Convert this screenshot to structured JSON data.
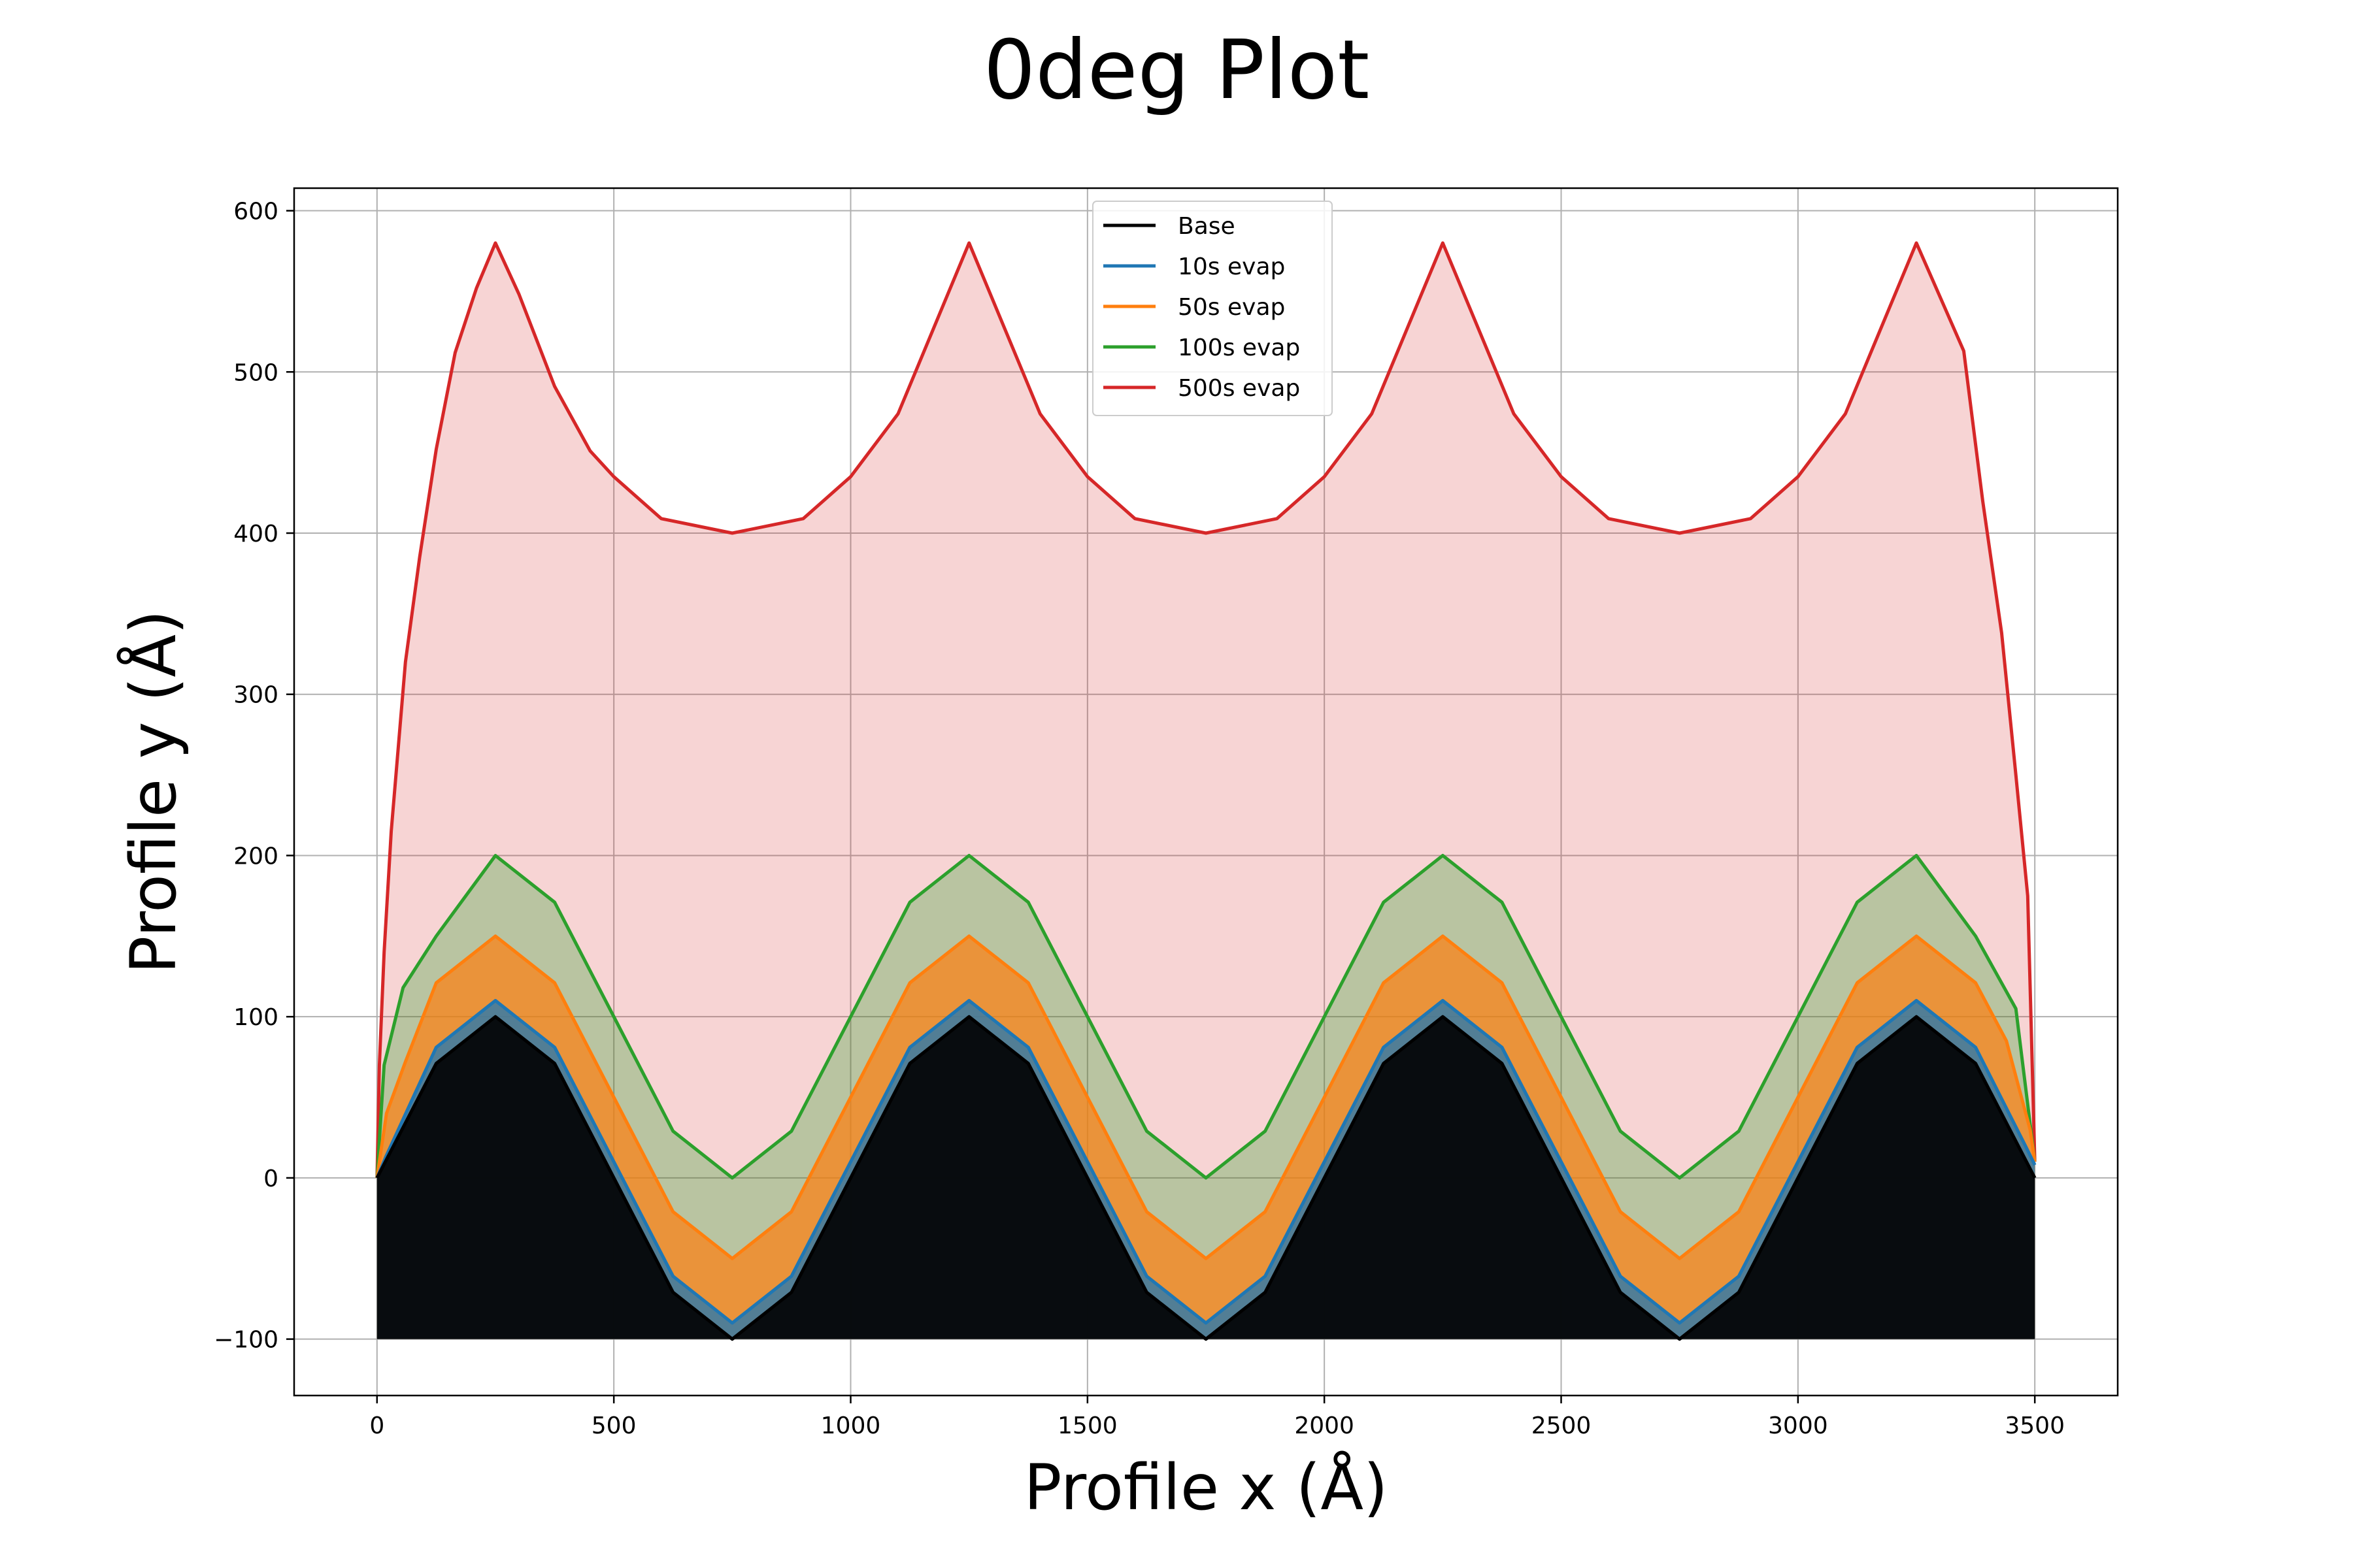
{
  "chart_data": {
    "type": "area",
    "title": "0deg Plot",
    "xlabel": "Profile x (Å)",
    "ylabel": "Profile y (Å)",
    "xlim": [
      -175,
      3675
    ],
    "ylim": [
      -135,
      614
    ],
    "xticks": [
      0,
      500,
      1000,
      1500,
      2000,
      2500,
      3000,
      3500
    ],
    "xtick_labels": [
      "0",
      "500",
      "1000",
      "1500",
      "2000",
      "2500",
      "3000",
      "3500"
    ],
    "yticks": [
      -100,
      0,
      100,
      200,
      300,
      400,
      500,
      600
    ],
    "ytick_labels": [
      "−100",
      "0",
      "100",
      "200",
      "300",
      "400",
      "500",
      "600"
    ],
    "grid": true,
    "legend_position": "upper center",
    "fill_baseline": -100,
    "series": [
      {
        "name": "Base",
        "color": "#000000",
        "fill_alpha": 0.9,
        "x": [
          0,
          125,
          250,
          375,
          500,
          625,
          750,
          875,
          1000,
          1125,
          1250,
          1375,
          1500,
          1625,
          1750,
          1875,
          2000,
          2125,
          2250,
          2375,
          2500,
          2625,
          2750,
          2875,
          3000,
          3125,
          3250,
          3375,
          3500
        ],
        "y": [
          0,
          71,
          100,
          71,
          0,
          -71,
          -100,
          -71,
          0,
          71,
          100,
          71,
          0,
          -71,
          -100,
          -71,
          0,
          71,
          100,
          71,
          0,
          -71,
          -100,
          -71,
          0,
          71,
          100,
          71,
          0
        ]
      },
      {
        "name": "10s evap",
        "color": "#1f77b4",
        "fill_alpha": 0.75,
        "x": [
          0,
          20,
          125,
          250,
          375,
          500,
          625,
          750,
          875,
          1000,
          1125,
          1250,
          1375,
          1500,
          1625,
          1750,
          1875,
          2000,
          2125,
          2250,
          2375,
          2500,
          2625,
          2750,
          2875,
          3000,
          3125,
          3250,
          3375,
          3480,
          3500
        ],
        "y": [
          0,
          14,
          81,
          110,
          81,
          10,
          -61,
          -90,
          -61,
          10,
          81,
          110,
          81,
          10,
          -61,
          -90,
          -61,
          10,
          81,
          110,
          81,
          10,
          -61,
          -90,
          -61,
          10,
          81,
          110,
          81,
          20,
          8
        ]
      },
      {
        "name": "50s evap",
        "color": "#ff7f0e",
        "fill_alpha": 0.7,
        "x": [
          0,
          20,
          60,
          125,
          250,
          375,
          500,
          625,
          750,
          875,
          1000,
          1125,
          1250,
          1375,
          1500,
          1625,
          1750,
          1875,
          2000,
          2125,
          2250,
          2375,
          2500,
          2625,
          2750,
          2875,
          3000,
          3125,
          3250,
          3375,
          3440,
          3490,
          3500
        ],
        "y": [
          0,
          40,
          72,
          121,
          150,
          121,
          50,
          -21,
          -50,
          -21,
          50,
          121,
          150,
          121,
          50,
          -21,
          -50,
          -21,
          50,
          121,
          150,
          121,
          50,
          -21,
          -50,
          -21,
          50,
          121,
          150,
          121,
          85,
          30,
          10
        ]
      },
      {
        "name": "100s evap",
        "color": "#2ca02c",
        "fill_alpha": 0.3,
        "x": [
          0,
          15,
          55,
          125,
          250,
          375,
          500,
          625,
          750,
          875,
          1000,
          1125,
          1250,
          1375,
          1500,
          1625,
          1750,
          1875,
          2000,
          2125,
          2250,
          2375,
          2500,
          2625,
          2750,
          2875,
          3000,
          3125,
          3250,
          3375,
          3460,
          3500
        ],
        "y": [
          0,
          70,
          118,
          150,
          200,
          171,
          100,
          29,
          0,
          29,
          100,
          171,
          200,
          171,
          100,
          29,
          0,
          29,
          100,
          171,
          200,
          171,
          100,
          29,
          0,
          29,
          100,
          171,
          200,
          150,
          105,
          10
        ]
      },
      {
        "name": "500s evap",
        "color": "#d62728",
        "fill_alpha": 0.2,
        "x": [
          0,
          5,
          15,
          30,
          60,
          90,
          125,
          165,
          210,
          250,
          300,
          375,
          450,
          500,
          600,
          750,
          900,
          1000,
          1100,
          1250,
          1400,
          1500,
          1600,
          1750,
          1900,
          2000,
          2100,
          2250,
          2400,
          2500,
          2600,
          2750,
          2900,
          3000,
          3100,
          3250,
          3350,
          3390,
          3430,
          3460,
          3485,
          3500
        ],
        "y": [
          0,
          70,
          140,
          215,
          320,
          385,
          452,
          512,
          552,
          580,
          548,
          491,
          451,
          435,
          409,
          400,
          409,
          435,
          474,
          580,
          474,
          435,
          409,
          400,
          409,
          435,
          474,
          580,
          474,
          435,
          409,
          400,
          409,
          435,
          474,
          580,
          513,
          420,
          338,
          250,
          175,
          10
        ]
      }
    ]
  }
}
